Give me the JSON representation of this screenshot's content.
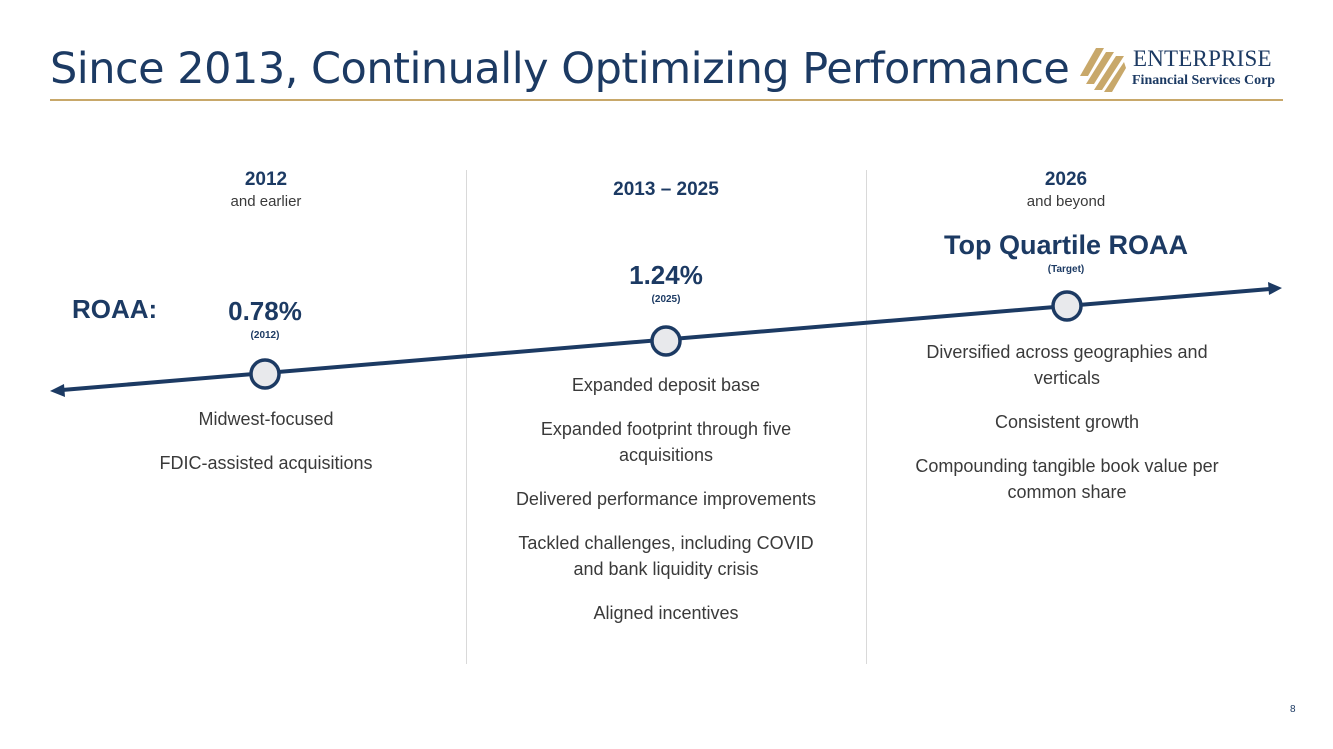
{
  "title": "Since 2013, Continually Optimizing Performance",
  "logo": {
    "name": "ENTERPRISE",
    "subtitle": "Financial Services Corp",
    "mark_color": "#c8a86a"
  },
  "colors": {
    "navy": "#1c3a63",
    "gold": "#c8a86a",
    "node_fill": "#e8e9ec"
  },
  "metric_label": "ROAA:",
  "columns": [
    {
      "year": "2012",
      "sub": "and earlier",
      "value": "0.78%",
      "note": "(2012)",
      "bullets": [
        "Midwest-focused",
        "FDIC-assisted acquisitions"
      ]
    },
    {
      "year": "2013 – 2025",
      "sub": "",
      "value": "1.24%",
      "note": "(2025)",
      "bullets": [
        "Expanded deposit base",
        "Expanded footprint through five acquisitions",
        "Delivered performance improvements",
        "Tackled challenges, including COVID and bank liquidity crisis",
        "Aligned incentives"
      ]
    },
    {
      "year": "2026",
      "sub": "and beyond",
      "value": "Top Quartile ROAA",
      "note": "(Target)",
      "bullets": [
        "Diversified across geographies and verticals",
        "Consistent growth",
        "Compounding tangible book value per common share"
      ]
    }
  ],
  "page_number": "8"
}
